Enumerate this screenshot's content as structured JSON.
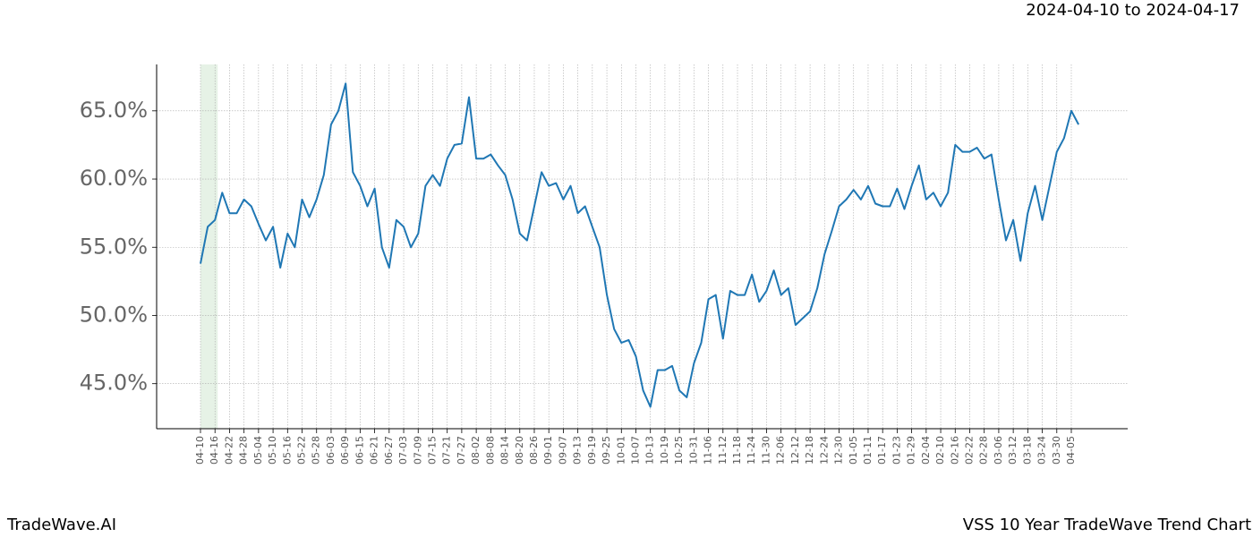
{
  "chart_data": {
    "type": "line",
    "date_range": "2024-04-10 to 2024-04-17",
    "footer_left": "TradeWave.AI",
    "footer_right": "VSS 10 Year TradeWave Trend Chart",
    "x": [
      "04-10",
      "04-13",
      "04-16",
      "04-19",
      "04-22",
      "04-25",
      "04-28",
      "05-01",
      "05-04",
      "05-07",
      "05-10",
      "05-13",
      "05-16",
      "05-19",
      "05-22",
      "05-25",
      "05-28",
      "05-31",
      "06-03",
      "06-06",
      "06-09",
      "06-12",
      "06-15",
      "06-18",
      "06-21",
      "06-24",
      "06-27",
      "06-30",
      "07-03",
      "07-06",
      "07-09",
      "07-12",
      "07-15",
      "07-18",
      "07-21",
      "07-24",
      "07-27",
      "07-30",
      "08-02",
      "08-05",
      "08-08",
      "08-11",
      "08-14",
      "08-17",
      "08-20",
      "08-23",
      "08-26",
      "08-29",
      "09-01",
      "09-04",
      "09-07",
      "09-10",
      "09-13",
      "09-16",
      "09-19",
      "09-22",
      "09-25",
      "09-28",
      "10-01",
      "10-04",
      "10-07",
      "10-10",
      "10-13",
      "10-16",
      "10-19",
      "10-22",
      "10-25",
      "10-28",
      "10-31",
      "11-03",
      "11-06",
      "11-09",
      "11-12",
      "11-15",
      "11-18",
      "11-21",
      "11-24",
      "11-27",
      "11-30",
      "12-03",
      "12-06",
      "12-09",
      "12-12",
      "12-15",
      "12-18",
      "12-21",
      "12-24",
      "12-27",
      "12-30",
      "01-02",
      "01-05",
      "01-08",
      "01-11",
      "01-14",
      "01-17",
      "01-20",
      "01-23",
      "01-26",
      "01-29",
      "02-01",
      "02-04",
      "02-07",
      "02-10",
      "02-13",
      "02-16",
      "02-19",
      "02-22",
      "02-25",
      "02-28",
      "03-03",
      "03-06",
      "03-09",
      "03-12",
      "03-15",
      "03-18",
      "03-21",
      "03-24",
      "03-27",
      "03-30",
      "04-02",
      "04-05",
      "04-08"
    ],
    "series": [
      {
        "color": "#1f77b4",
        "values": [
          53.8,
          56.5,
          57,
          59,
          57.5,
          57.5,
          58.5,
          58,
          56.7,
          55.5,
          56.5,
          53.5,
          56,
          55,
          58.5,
          57.2,
          58.5,
          60.3,
          64,
          65,
          67,
          60.5,
          59.5,
          58,
          59.3,
          55,
          53.5,
          57,
          56.5,
          55,
          56,
          59.5,
          60.3,
          59.5,
          61.5,
          62.5,
          62.6,
          66,
          61.5,
          61.5,
          61.8,
          61,
          60.3,
          58.5,
          56,
          55.5,
          58,
          60.5,
          59.5,
          59.7,
          58.5,
          59.5,
          57.5,
          58,
          56.5,
          55,
          51.5,
          49,
          48,
          48.2,
          47,
          44.5,
          43.3,
          46,
          46,
          46.3,
          44.5,
          44,
          46.5,
          48,
          51.2,
          51.5,
          48.3,
          51.8,
          51.5,
          51.5,
          53,
          51,
          51.8,
          53.3,
          51.5,
          52,
          49.3,
          49.8,
          50.3,
          52,
          54.5,
          56.2,
          58,
          58.5,
          59.2,
          58.5,
          59.5,
          58.2,
          58,
          58,
          59.3,
          57.8,
          59.5,
          61,
          58.5,
          59,
          58,
          59,
          62.5,
          62,
          62,
          62.3,
          61.5,
          61.8,
          58.5,
          55.5,
          57,
          54,
          57.5,
          59.5,
          57,
          59.5,
          62,
          63,
          65,
          64
        ]
      }
    ],
    "xticks": [
      "04-10",
      "04-16",
      "04-22",
      "04-28",
      "05-04",
      "05-10",
      "05-16",
      "05-22",
      "05-28",
      "06-03",
      "06-09",
      "06-15",
      "06-21",
      "06-27",
      "07-03",
      "07-09",
      "07-15",
      "07-21",
      "07-27",
      "08-02",
      "08-08",
      "08-14",
      "08-20",
      "08-26",
      "09-01",
      "09-07",
      "09-13",
      "09-19",
      "09-25",
      "10-01",
      "10-07",
      "10-13",
      "10-19",
      "10-25",
      "10-31",
      "11-06",
      "11-12",
      "11-18",
      "11-24",
      "11-30",
      "12-06",
      "12-12",
      "12-18",
      "12-24",
      "12-30",
      "01-05",
      "01-11",
      "01-17",
      "01-23",
      "01-29",
      "02-04",
      "02-10",
      "02-16",
      "02-22",
      "02-28",
      "03-06",
      "03-12",
      "03-18",
      "03-24",
      "03-30",
      "04-05"
    ],
    "ylim": [
      41.7,
      68.4
    ],
    "yticks": [
      {
        "value": 45,
        "label": "45.0%"
      },
      {
        "value": 50,
        "label": "50.0%"
      },
      {
        "value": 55,
        "label": "55.0%"
      },
      {
        "value": 60,
        "label": "60.0%"
      },
      {
        "value": 65,
        "label": "65.0%"
      }
    ],
    "grid": true
  }
}
